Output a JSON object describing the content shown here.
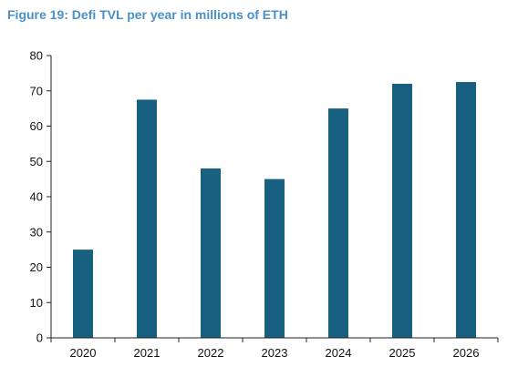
{
  "chart_data": {
    "type": "bar",
    "title": "Figure 19: Defi TVL per year in millions of ETH",
    "xlabel": "",
    "ylabel": "",
    "categories": [
      "2020",
      "2021",
      "2022",
      "2023",
      "2024",
      "2025",
      "2026"
    ],
    "values": [
      25,
      67.5,
      48,
      45,
      65,
      72,
      72.5
    ],
    "ylim": [
      0,
      80
    ],
    "yticks": [
      0,
      10,
      20,
      30,
      40,
      50,
      60,
      70,
      80
    ],
    "yticks_labels": [
      "0",
      "10",
      "20",
      "30",
      "40",
      "50",
      "60",
      "70",
      "80"
    ],
    "bar_color": "#17607f",
    "grid": false,
    "legend": "none"
  }
}
